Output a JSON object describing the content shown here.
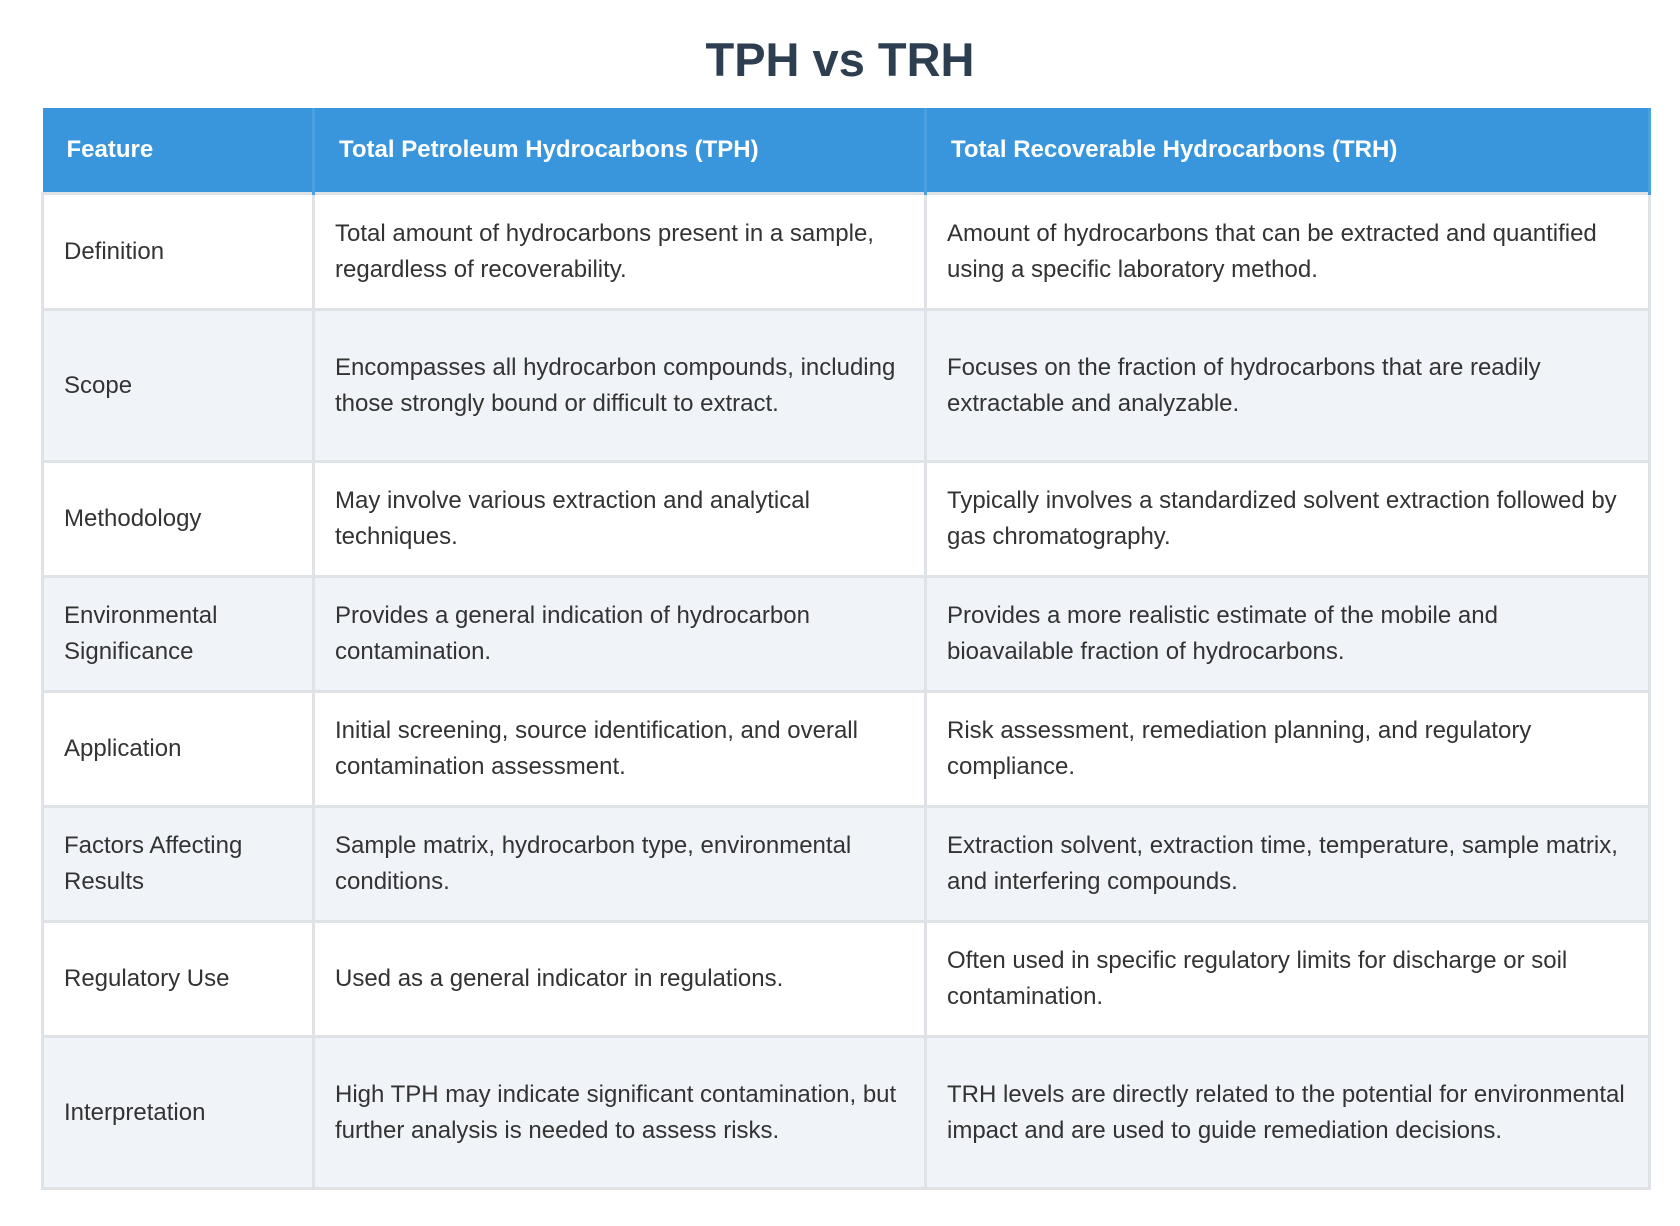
{
  "header": {
    "title": "TPH vs TRH"
  },
  "table": {
    "columns": [
      "Feature",
      "Total Petroleum Hydrocarbons (TPH)",
      "Total Recoverable Hydrocarbons (TRH)"
    ],
    "rows": [
      [
        "Definition",
        "Total amount of hydrocarbons present in a sample, regardless of recoverability.",
        "Amount of hydrocarbons that can be extracted and quantified using a specific laboratory method."
      ],
      [
        "Scope",
        "Encompasses all hydrocarbon compounds, including those strongly bound or difficult to extract.",
        "Focuses on the fraction of hydrocarbons that are readily extractable and analyzable."
      ],
      [
        "Methodology",
        "May involve various extraction and analytical techniques.",
        "Typically involves a standardized solvent extraction followed by gas chromatography."
      ],
      [
        "Environmental Significance",
        "Provides a general indication of hydrocarbon contamination.",
        "Provides a more realistic estimate of the mobile and bioavailable fraction of hydrocarbons."
      ],
      [
        "Application",
        "Initial screening, source identification, and overall contamination assessment.",
        "Risk assessment, remediation planning, and regulatory compliance."
      ],
      [
        "Factors Affecting Results",
        "Sample matrix, hydrocarbon type, environmental conditions.",
        "Extraction solvent, extraction time, temperature, sample matrix, and interfering compounds."
      ],
      [
        "Regulatory Use",
        "Used as a general indicator in regulations.",
        "Often used in specific regulatory limits for discharge or soil contamination."
      ],
      [
        "Interpretation",
        "High TPH may indicate significant contamination, but further analysis is needed to assess risks.",
        "TRH levels are directly related to the potential for environmental impact and are used to guide remediation decisions."
      ]
    ]
  }
}
